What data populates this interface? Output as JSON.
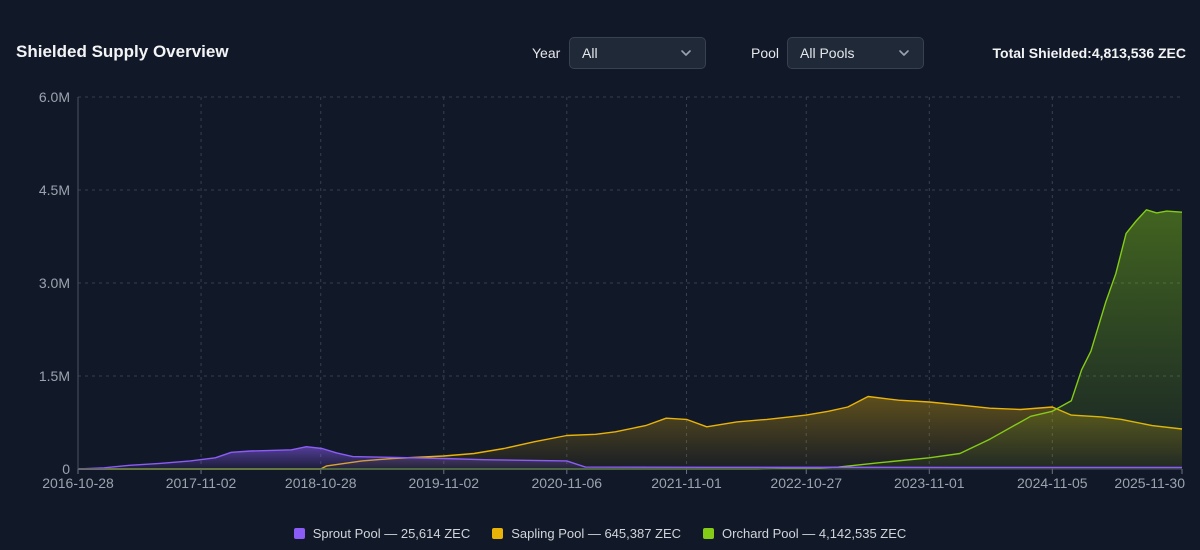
{
  "header": {
    "title": "Shielded Supply Overview",
    "year_label": "Year",
    "year_value": "All",
    "pool_label": "Pool",
    "pool_value": "All Pools",
    "total_label": "Total Shielded:",
    "total_value": "4,813,536 ZEC"
  },
  "icons": {
    "dropdown": "chevron-down-icon"
  },
  "colors": {
    "background": "#111827",
    "sprout": "#8b5cf6",
    "sapling": "#eab308",
    "orchard": "#84cc16",
    "grid": "#374151",
    "axis_text": "#9ca3af"
  },
  "legend": [
    {
      "label": "Sprout Pool — 25,614 ZEC",
      "color": "#8b5cf6"
    },
    {
      "label": "Sapling Pool — 645,387 ZEC",
      "color": "#eab308"
    },
    {
      "label": "Orchard Pool — 4,142,535 ZEC",
      "color": "#84cc16"
    }
  ],
  "chart_data": {
    "type": "area",
    "x_type": "date",
    "xlim": [
      "2016-10-28",
      "2025-11-30"
    ],
    "ylim": [
      0,
      6000000
    ],
    "yticks": [
      0,
      1500000,
      3000000,
      4500000,
      6000000
    ],
    "ytick_labels": [
      "0",
      "1.5M",
      "3.0M",
      "4.5M",
      "6.0M"
    ],
    "xticks": [
      "2016-10-28",
      "2017-11-02",
      "2018-10-28",
      "2019-11-02",
      "2020-11-06",
      "2021-11-01",
      "2022-10-27",
      "2023-11-01",
      "2024-11-05",
      "2025-11-30"
    ],
    "xtick_labels": [
      "2016-10-28",
      "2017-11-02",
      "2018-10-28",
      "2019-11-02",
      "2020-11-06",
      "2021-11-01",
      "2022-10-27",
      "2023-11-01",
      "2024-11-05",
      "2025-11-30"
    ],
    "grid": true,
    "legend_position": "bottom",
    "series": [
      {
        "name": "Sprout Pool",
        "color": "#8b5cf6",
        "points": [
          [
            "2016-10-28",
            0
          ],
          [
            "2017-01-15",
            20000
          ],
          [
            "2017-04-01",
            60000
          ],
          [
            "2017-07-01",
            90000
          ],
          [
            "2017-10-01",
            130000
          ],
          [
            "2017-12-15",
            180000
          ],
          [
            "2018-02-01",
            270000
          ],
          [
            "2018-04-01",
            290000
          ],
          [
            "2018-06-01",
            300000
          ],
          [
            "2018-08-01",
            310000
          ],
          [
            "2018-09-15",
            360000
          ],
          [
            "2018-11-01",
            330000
          ],
          [
            "2018-12-15",
            260000
          ],
          [
            "2019-02-01",
            200000
          ],
          [
            "2019-05-01",
            190000
          ],
          [
            "2019-08-01",
            180000
          ],
          [
            "2019-11-01",
            170000
          ],
          [
            "2020-03-01",
            150000
          ],
          [
            "2020-07-01",
            140000
          ],
          [
            "2020-11-06",
            130000
          ],
          [
            "2021-01-01",
            30000
          ],
          [
            "2022-01-01",
            28000
          ],
          [
            "2023-01-01",
            27000
          ],
          [
            "2024-01-01",
            26000
          ],
          [
            "2025-11-30",
            25614
          ]
        ]
      },
      {
        "name": "Sapling Pool",
        "color": "#eab308",
        "points": [
          [
            "2016-10-28",
            0
          ],
          [
            "2018-10-28",
            0
          ],
          [
            "2018-11-15",
            50000
          ],
          [
            "2019-03-01",
            130000
          ],
          [
            "2019-06-01",
            170000
          ],
          [
            "2019-11-02",
            210000
          ],
          [
            "2020-02-01",
            250000
          ],
          [
            "2020-05-01",
            330000
          ],
          [
            "2020-08-01",
            440000
          ],
          [
            "2020-11-06",
            540000
          ],
          [
            "2021-02-01",
            560000
          ],
          [
            "2021-04-01",
            600000
          ],
          [
            "2021-07-01",
            700000
          ],
          [
            "2021-09-01",
            820000
          ],
          [
            "2021-11-01",
            800000
          ],
          [
            "2022-01-01",
            680000
          ],
          [
            "2022-04-01",
            760000
          ],
          [
            "2022-07-01",
            800000
          ],
          [
            "2022-10-27",
            870000
          ],
          [
            "2023-01-01",
            930000
          ],
          [
            "2023-03-01",
            1000000
          ],
          [
            "2023-05-01",
            1170000
          ],
          [
            "2023-08-01",
            1110000
          ],
          [
            "2023-11-01",
            1080000
          ],
          [
            "2024-02-01",
            1030000
          ],
          [
            "2024-05-01",
            980000
          ],
          [
            "2024-08-01",
            960000
          ],
          [
            "2024-11-05",
            1000000
          ],
          [
            "2025-01-01",
            870000
          ],
          [
            "2025-04-01",
            840000
          ],
          [
            "2025-06-01",
            800000
          ],
          [
            "2025-09-01",
            700000
          ],
          [
            "2025-11-30",
            645387
          ]
        ]
      },
      {
        "name": "Orchard Pool",
        "color": "#84cc16",
        "points": [
          [
            "2016-10-28",
            0
          ],
          [
            "2022-05-31",
            0
          ],
          [
            "2022-10-27",
            10000
          ],
          [
            "2023-02-01",
            30000
          ],
          [
            "2023-06-01",
            100000
          ],
          [
            "2023-11-01",
            180000
          ],
          [
            "2024-02-01",
            250000
          ],
          [
            "2024-05-01",
            480000
          ],
          [
            "2024-09-01",
            850000
          ],
          [
            "2024-11-05",
            930000
          ],
          [
            "2025-01-01",
            1100000
          ],
          [
            "2025-02-01",
            1600000
          ],
          [
            "2025-03-01",
            1900000
          ],
          [
            "2025-04-15",
            2700000
          ],
          [
            "2025-05-15",
            3150000
          ],
          [
            "2025-06-15",
            3800000
          ],
          [
            "2025-07-15",
            4000000
          ],
          [
            "2025-08-15",
            4180000
          ],
          [
            "2025-09-15",
            4130000
          ],
          [
            "2025-10-15",
            4160000
          ],
          [
            "2025-11-30",
            4142535
          ]
        ]
      }
    ]
  }
}
